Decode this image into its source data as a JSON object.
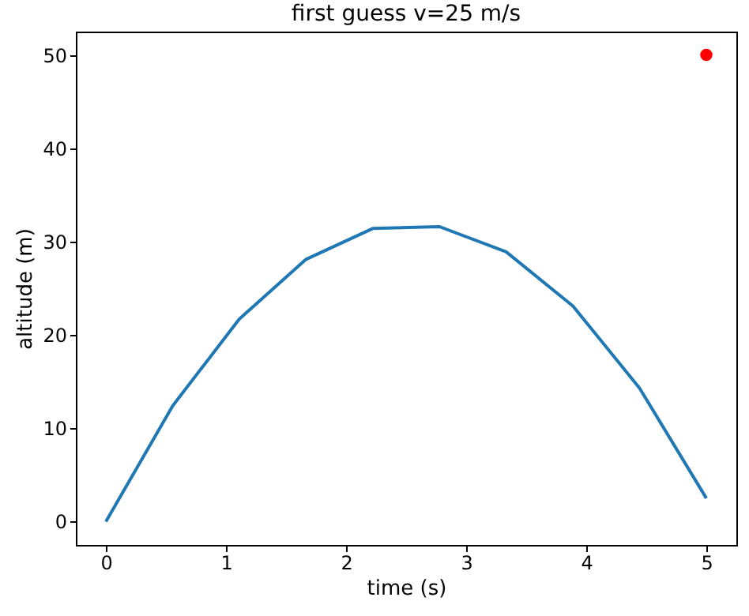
{
  "chart_data": {
    "type": "line",
    "title": "first guess v=25 m/s",
    "xlabel": "time (s)",
    "ylabel": "altitude (m)",
    "xlim": [
      -0.25,
      5.25
    ],
    "ylim": [
      -2.5,
      52.5
    ],
    "xticks": [
      0,
      1,
      2,
      3,
      4,
      5
    ],
    "yticks": [
      0,
      10,
      20,
      30,
      40,
      50
    ],
    "grid": false,
    "series": [
      {
        "color": "#1f77b4",
        "x": [
          0,
          0.556,
          1.111,
          1.667,
          2.222,
          2.778,
          3.333,
          3.889,
          4.444,
          5.0
        ],
        "values": [
          0,
          12.4,
          21.7,
          28.1,
          31.4,
          31.6,
          28.9,
          23.1,
          14.3,
          2.5
        ]
      },
      {
        "type": "scatter",
        "color": "#ff0000",
        "marker": "circle",
        "x": [
          5
        ],
        "values": [
          50
        ]
      }
    ]
  }
}
